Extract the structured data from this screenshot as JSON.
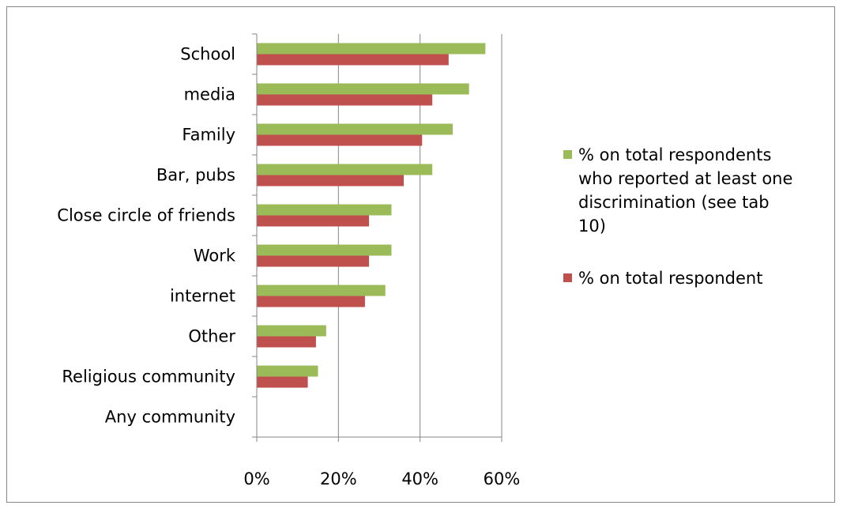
{
  "chart_data": {
    "type": "bar",
    "orientation": "horizontal",
    "categories": [
      "School",
      "media",
      "Family",
      "Bar, pubs",
      "Close circle of friends",
      "Work",
      "internet",
      "Other",
      "Religious community",
      "Any community"
    ],
    "series": [
      {
        "name": "% on total respondents who reported at least one discrimination (see tab 10)",
        "color": "#9BBB59",
        "values": [
          0.56,
          0.52,
          0.48,
          0.43,
          0.33,
          0.33,
          0.315,
          0.17,
          0.15,
          0
        ]
      },
      {
        "name": "% on total respondent",
        "color": "#C0504D",
        "values": [
          0.47,
          0.43,
          0.405,
          0.36,
          0.275,
          0.275,
          0.265,
          0.145,
          0.125,
          0
        ]
      }
    ],
    "xlim": [
      0,
      0.6
    ],
    "xticks": [
      "0%",
      "20%",
      "40%",
      "60%"
    ],
    "grid": "vertical",
    "legend_position": "right",
    "legend_lines": [
      [
        "% on total respondents",
        "who reported at least one",
        "discrimination (see tab",
        "10)"
      ],
      [
        "% on total respondent"
      ]
    ]
  }
}
